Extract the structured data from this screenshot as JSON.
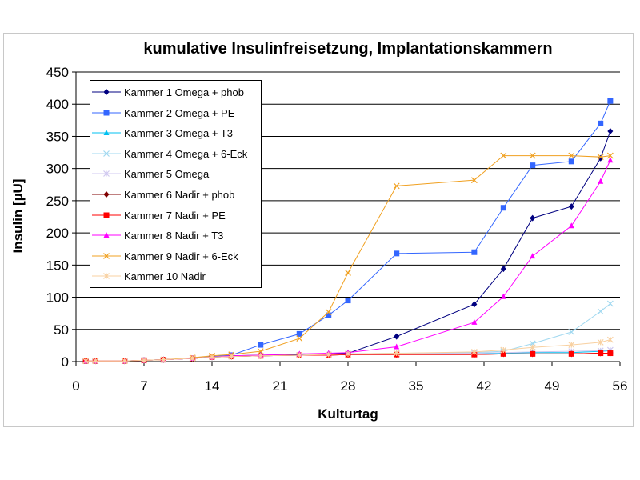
{
  "chart_data": {
    "type": "line",
    "title": "kumulative Insulinfreisetzung, Implantationskammern",
    "xlabel": "Kulturtag",
    "ylabel": "Insulin [µU]",
    "xlim": [
      0,
      56
    ],
    "ylim": [
      0,
      450
    ],
    "xticks": [
      0,
      7,
      14,
      21,
      28,
      35,
      42,
      49,
      56
    ],
    "yticks": [
      0,
      50,
      100,
      150,
      200,
      250,
      300,
      350,
      400,
      450
    ],
    "grid": "horizontal",
    "legend": "top-left",
    "series": [
      {
        "name": "Kammer 1 Omega + phob",
        "color": "#000080",
        "marker": "diamond",
        "x": [
          1,
          2,
          5,
          7,
          9,
          12,
          14,
          16,
          19,
          23,
          26,
          28,
          33,
          41,
          44,
          47,
          51,
          54,
          55
        ],
        "y": [
          1,
          1,
          1,
          2,
          3,
          5,
          7,
          9,
          10,
          11,
          12,
          13,
          39,
          89,
          144,
          223,
          241,
          316,
          358
        ]
      },
      {
        "name": "Kammer 2 Omega + PE",
        "color": "#3366ff",
        "marker": "square",
        "x": [
          1,
          2,
          5,
          7,
          9,
          12,
          14,
          16,
          19,
          23,
          26,
          28,
          33,
          41,
          44,
          47,
          51,
          54,
          55
        ],
        "y": [
          1,
          1,
          1,
          2,
          3,
          5,
          8,
          10,
          26,
          43,
          72,
          95,
          168,
          170,
          239,
          305,
          311,
          370,
          405
        ]
      },
      {
        "name": "Kammer 3 Omega + T3",
        "color": "#00c0f0",
        "marker": "triangle",
        "x": [
          1,
          2,
          5,
          7,
          9,
          12,
          14,
          16,
          19,
          23,
          26,
          28,
          33,
          41,
          44,
          47,
          51,
          54,
          55
        ],
        "y": [
          1,
          1,
          1,
          2,
          3,
          5,
          7,
          8,
          9,
          10,
          11,
          12,
          12,
          12,
          13,
          14,
          14,
          16,
          17
        ]
      },
      {
        "name": "Kammer 4 Omega + 6-Eck",
        "color": "#a0d8f0",
        "marker": "x",
        "x": [
          1,
          2,
          5,
          7,
          9,
          12,
          14,
          16,
          19,
          23,
          26,
          28,
          33,
          41,
          44,
          47,
          51,
          54,
          55
        ],
        "y": [
          1,
          1,
          1,
          2,
          3,
          5,
          7,
          8,
          9,
          10,
          11,
          12,
          13,
          14,
          16,
          28,
          46,
          78,
          90
        ]
      },
      {
        "name": "Kammer 5 Omega",
        "color": "#d0c8f0",
        "marker": "star",
        "x": [
          1,
          2,
          5,
          7,
          9,
          12,
          14,
          16,
          19,
          23,
          26,
          28,
          33,
          41,
          44,
          47,
          51,
          54,
          55
        ],
        "y": [
          1,
          1,
          1,
          2,
          3,
          5,
          7,
          8,
          9,
          10,
          11,
          12,
          12,
          13,
          14,
          15,
          16,
          17,
          18
        ]
      },
      {
        "name": "Kammer 6 Nadir + phob",
        "color": "#800000",
        "marker": "diamond",
        "x": [
          1,
          2,
          5,
          7,
          9,
          12,
          14,
          16,
          19,
          23,
          26,
          28,
          33,
          41,
          44,
          47,
          51,
          54,
          55
        ],
        "y": [
          1,
          1,
          1,
          2,
          3,
          5,
          7,
          8,
          9,
          10,
          10,
          11,
          11,
          11,
          12,
          12,
          12,
          13,
          13
        ]
      },
      {
        "name": "Kammer 7 Nadir + PE",
        "color": "#ff0000",
        "marker": "square",
        "x": [
          1,
          2,
          5,
          7,
          9,
          12,
          14,
          16,
          19,
          23,
          26,
          28,
          33,
          41,
          44,
          47,
          51,
          54,
          55
        ],
        "y": [
          1,
          1,
          1,
          2,
          3,
          5,
          7,
          8,
          9,
          10,
          10,
          11,
          11,
          11,
          12,
          12,
          12,
          13,
          13
        ]
      },
      {
        "name": "Kammer 8 Nadir + T3",
        "color": "#ff00ff",
        "marker": "triangle",
        "x": [
          1,
          2,
          5,
          7,
          9,
          12,
          14,
          16,
          19,
          23,
          26,
          28,
          33,
          41,
          44,
          47,
          51,
          54,
          55
        ],
        "y": [
          1,
          1,
          1,
          2,
          3,
          5,
          7,
          9,
          10,
          12,
          13,
          14,
          23,
          61,
          101,
          164,
          211,
          280,
          313
        ]
      },
      {
        "name": "Kammer 9 Nadir + 6-Eck",
        "color": "#f0a020",
        "marker": "x",
        "x": [
          1,
          2,
          5,
          7,
          9,
          12,
          14,
          16,
          19,
          23,
          26,
          28,
          33,
          41,
          44,
          47,
          51,
          54,
          55
        ],
        "y": [
          1,
          1,
          1,
          2,
          3,
          6,
          9,
          11,
          16,
          36,
          77,
          138,
          273,
          282,
          320,
          320,
          320,
          318,
          320
        ]
      },
      {
        "name": "Kammer 10 Nadir",
        "color": "#f8d0a0",
        "marker": "star",
        "x": [
          1,
          2,
          5,
          7,
          9,
          12,
          14,
          16,
          19,
          23,
          26,
          28,
          33,
          41,
          44,
          47,
          51,
          54,
          55
        ],
        "y": [
          1,
          1,
          1,
          2,
          3,
          5,
          7,
          8,
          9,
          10,
          11,
          12,
          13,
          15,
          18,
          22,
          26,
          30,
          34
        ]
      }
    ]
  }
}
